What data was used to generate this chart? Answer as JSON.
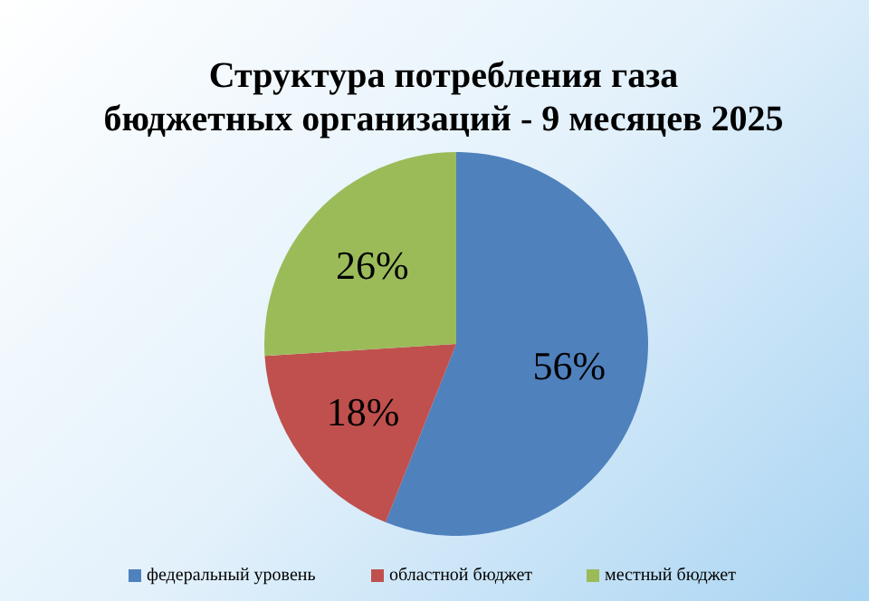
{
  "chart_data": {
    "type": "pie",
    "title": "Структура потребления газа\nбюджетных организаций - 9 месяцев 2025",
    "categories": [
      "федеральный уровень",
      "областной бюджет",
      "местный бюджет"
    ],
    "values": [
      56,
      18,
      26
    ],
    "colors": [
      "#4f81bd",
      "#c0504d",
      "#9bbb59"
    ],
    "value_labels": [
      "56%",
      "18%",
      "26%"
    ],
    "legend": "bottom"
  }
}
